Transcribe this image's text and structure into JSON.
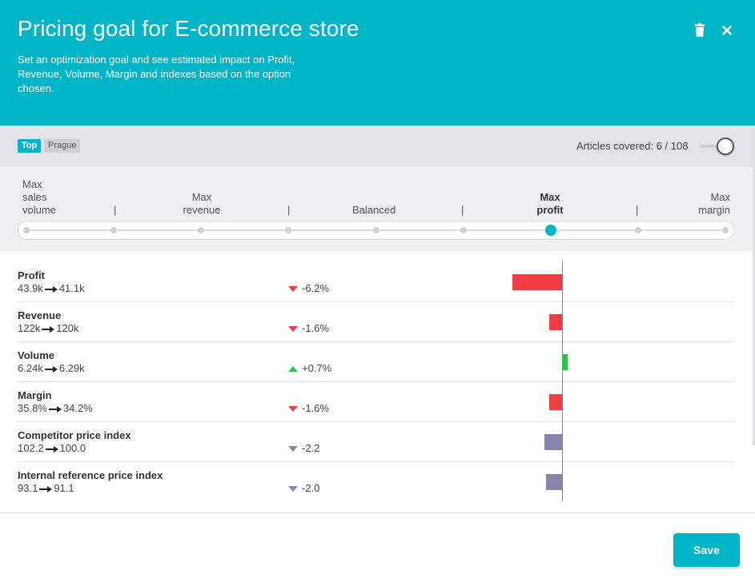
{
  "header": {
    "title": "Pricing goal for E-commerce store",
    "description": "Set an optimization goal and see estimated impact on Profit, Revenue, Volume, Margin and indexes based on the option chosen.",
    "trash_icon": "trash-icon",
    "close_icon": "close-icon",
    "background": "#00b5c8"
  },
  "filters": {
    "tags": [
      "Top",
      "Prague"
    ],
    "articles_label": "Articles covered: 6 / 108",
    "toggle_on": false
  },
  "goal_slider": {
    "options": [
      {
        "label": "Max\nsales\nvolume",
        "active": false
      },
      {
        "label": "Max\nrevenue",
        "active": false
      },
      {
        "label": "Balanced",
        "active": false
      },
      {
        "label": "Max\nprofit",
        "active": true
      },
      {
        "label": "Max\nmargin",
        "active": false
      }
    ],
    "separator": "|",
    "steps": 9,
    "selected_step": 6
  },
  "metrics": [
    {
      "name": "Profit",
      "from": "43.9k",
      "to": "41.1k",
      "change": "-6.2%",
      "direction": "down",
      "color": "#f23c44",
      "bar_value": -6.2
    },
    {
      "name": "Revenue",
      "from": "122k",
      "to": "120k",
      "change": "-1.6%",
      "direction": "down",
      "color": "#f23c44",
      "bar_value": -1.6
    },
    {
      "name": "Volume",
      "from": "6.24k",
      "to": "6.29k",
      "change": "+0.7%",
      "direction": "up",
      "color": "#2ec04f",
      "bar_value": 0.7
    },
    {
      "name": "Margin",
      "from": "35.8%",
      "to": "34.2%",
      "change": "-1.6%",
      "direction": "down",
      "color": "#f23c44",
      "bar_value": -1.6
    },
    {
      "name": "Competitor price index",
      "from": "102.2",
      "to": "100.0",
      "change": "-2.2",
      "direction": "down",
      "color": "#8886a8",
      "bar_value": -2.2
    },
    {
      "name": "Internal reference price index",
      "from": "93.1",
      "to": "91.1",
      "change": "-2.0",
      "direction": "down",
      "color": "#8886a8",
      "bar_value": -2.0
    }
  ],
  "footer": {
    "save_label": "Save"
  }
}
